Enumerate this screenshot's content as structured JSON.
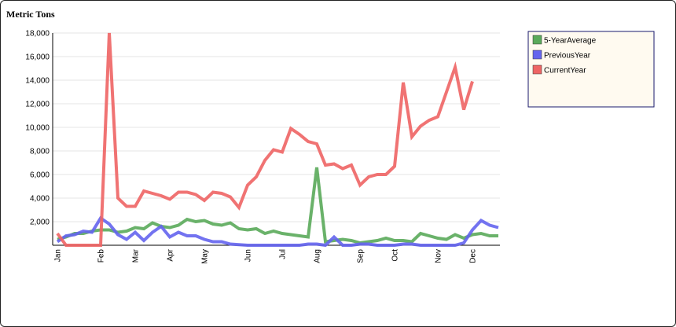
{
  "chart_data": {
    "type": "line",
    "title": "Metric Tons",
    "categories": [
      "Jan",
      null,
      null,
      null,
      null,
      "Feb",
      null,
      null,
      null,
      "Mar",
      null,
      null,
      null,
      "Apr",
      null,
      null,
      null,
      "May",
      null,
      null,
      null,
      null,
      "Jun",
      null,
      null,
      null,
      "Jul",
      null,
      null,
      null,
      "Aug",
      null,
      null,
      null,
      null,
      "Sep",
      null,
      null,
      null,
      "Oct",
      null,
      null,
      null,
      null,
      "Nov",
      null,
      null,
      null,
      "Dec",
      null,
      null,
      null
    ],
    "series": [
      {
        "name": "5-YearAverage",
        "color": "#5aaa5a",
        "values": [
          500,
          700,
          1000,
          1000,
          1200,
          1300,
          1300,
          1100,
          1200,
          1500,
          1400,
          1900,
          1600,
          1500,
          1700,
          2200,
          2000,
          2100,
          1800,
          1700,
          1900,
          1400,
          1300,
          1400,
          1000,
          1200,
          1000,
          900,
          800,
          700,
          6600,
          300,
          400,
          500,
          400,
          200,
          300,
          400,
          600,
          400,
          400,
          300,
          1000,
          800,
          600,
          500,
          900,
          600,
          900,
          1000,
          800,
          800
        ]
      },
      {
        "name": "PreviousYear",
        "color": "#6464ee",
        "values": [
          300,
          800,
          900,
          1200,
          1100,
          2300,
          1800,
          900,
          500,
          1100,
          400,
          1100,
          1600,
          700,
          1100,
          800,
          800,
          500,
          300,
          300,
          100,
          50,
          0,
          0,
          0,
          0,
          0,
          0,
          0,
          100,
          100,
          0,
          700,
          0,
          0,
          100,
          100,
          0,
          0,
          0,
          100,
          100,
          0,
          0,
          0,
          0,
          0,
          200,
          1300,
          2100,
          1700,
          1500
        ]
      },
      {
        "name": "CurrentYear",
        "color": "#ee6464",
        "values": [
          1000,
          0,
          0,
          0,
          0,
          0,
          18000,
          4000,
          3300,
          3300,
          4600,
          4400,
          4200,
          3900,
          4500,
          4500,
          4300,
          3800,
          4500,
          4400,
          4100,
          3200,
          5100,
          5800,
          7200,
          8100,
          7900,
          9900,
          9400,
          8800,
          8600,
          6800,
          6900,
          6500,
          6800,
          5100,
          5800,
          6000,
          6000,
          6700,
          13800,
          9200,
          10100,
          10600,
          10900,
          13000,
          15100,
          11500,
          13900,
          null,
          null,
          null
        ]
      }
    ],
    "ylim": [
      0,
      18000
    ],
    "yticks": [
      {
        "value": 2000,
        "label": "2,000"
      },
      {
        "value": 4000,
        "label": "4,000"
      },
      {
        "value": 6000,
        "label": "6,000"
      },
      {
        "value": 8000,
        "label": "8,000"
      },
      {
        "value": 10000,
        "label": "10,000"
      },
      {
        "value": 12000,
        "label": "12,000"
      },
      {
        "value": 14000,
        "label": "14,000"
      },
      {
        "value": 16000,
        "label": "16,000"
      },
      {
        "value": 18000,
        "label": "18,000"
      }
    ],
    "grid": true,
    "legend": "top-right"
  }
}
